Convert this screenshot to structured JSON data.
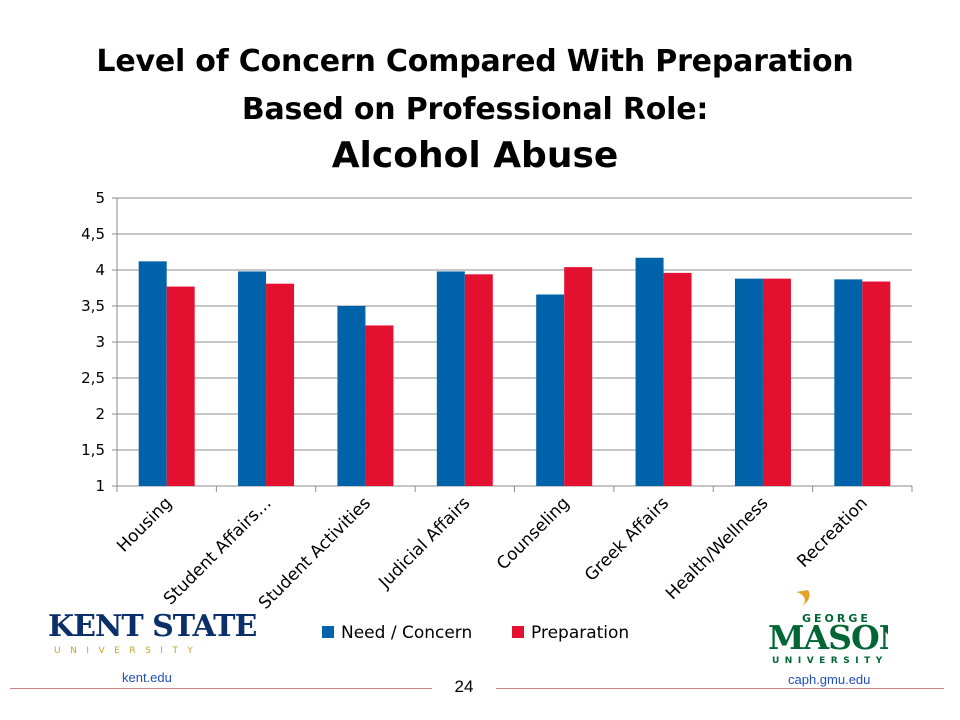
{
  "chart_data": {
    "type": "bar",
    "title_line1": "Level of Concern Compared With Preparation",
    "title_line2": "Based on Professional Role:",
    "subtitle": "Alcohol Abuse",
    "categories": [
      "Housing",
      "Student Affairs…",
      "Student Activities",
      "Judicial Affairs",
      "Counseling",
      "Greek Affairs",
      "Health/Wellness",
      "Recreation"
    ],
    "series": [
      {
        "name": "Need / Concern",
        "color": "#0062a8",
        "values": [
          4.12,
          3.98,
          3.5,
          3.98,
          3.66,
          4.17,
          3.88,
          3.87
        ]
      },
      {
        "name": "Preparation",
        "color": "#e3112f",
        "values": [
          3.77,
          3.81,
          3.23,
          3.94,
          4.04,
          3.96,
          3.88,
          3.84
        ]
      }
    ],
    "ylim": [
      1,
      5
    ],
    "yticks": [
      "1",
      "1,5",
      "2",
      "2,5",
      "3",
      "3,5",
      "4",
      "4,5",
      "5"
    ],
    "ytick_values": [
      1,
      1.5,
      2,
      2.5,
      3,
      3.5,
      4,
      4.5,
      5
    ],
    "grid": true,
    "legend_position": "bottom"
  },
  "footer": {
    "left_logo_text": "KENT STATE",
    "left_logo_sub": "UNIVERSITY",
    "left_url": "kent.edu",
    "page_number": "24",
    "right_logo_top": "GEORGE",
    "right_logo_main": "MASON",
    "right_logo_sub": "UNIVERSITY",
    "right_url": "caph.gmu.edu"
  },
  "colors": {
    "kent_blue": "#0a2f6b",
    "kent_gold": "#c9a227",
    "gmu_green": "#006633",
    "gmu_gold": "#e0a526"
  }
}
